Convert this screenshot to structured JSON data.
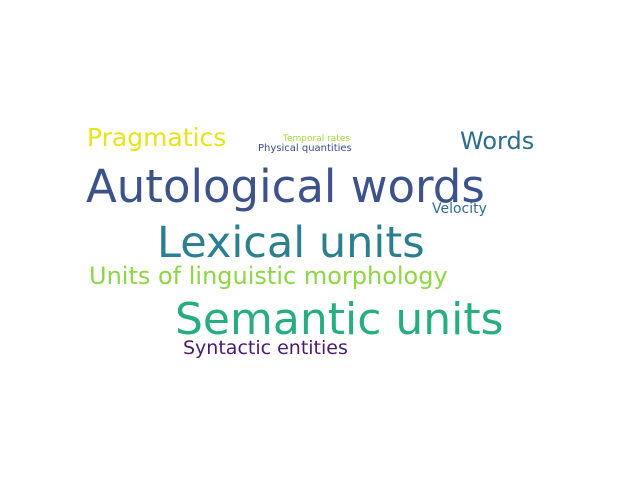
{
  "wordcloud": {
    "words": [
      {
        "key": "autological",
        "text": "Autological words",
        "color": "#3b528b"
      },
      {
        "key": "lexical",
        "text": "Lexical units",
        "color": "#2c7f8e"
      },
      {
        "key": "semantic",
        "text": "Semantic units",
        "color": "#27ad81"
      },
      {
        "key": "ulm",
        "text": "Units of linguistic morphology",
        "color": "#8ed645"
      },
      {
        "key": "pragmatics",
        "text": "Pragmatics",
        "color": "#e7e419"
      },
      {
        "key": "words",
        "text": "Words",
        "color": "#2f6d8e"
      },
      {
        "key": "syntactic",
        "text": "Syntactic entities",
        "color": "#481b6d"
      },
      {
        "key": "velocity",
        "text": "Velocity",
        "color": "#2f6f8e"
      },
      {
        "key": "temporal",
        "text": "Temporal rates",
        "color": "#a2da37"
      },
      {
        "key": "physical",
        "text": "Physical quantities",
        "color": "#3e4a89"
      }
    ]
  }
}
